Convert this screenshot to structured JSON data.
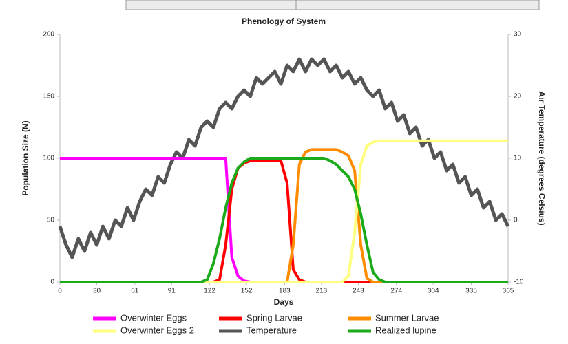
{
  "chart_data": {
    "type": "line",
    "title": "Phenology of System",
    "xlabel": "Days",
    "ylabel": "Population Size (N)",
    "y2label": "Air Temperature (degrees Celsius)",
    "x": [
      0,
      5,
      10,
      15,
      20,
      25,
      30,
      35,
      40,
      45,
      50,
      55,
      60,
      65,
      70,
      75,
      80,
      85,
      90,
      95,
      100,
      105,
      110,
      115,
      120,
      125,
      130,
      135,
      140,
      145,
      150,
      155,
      160,
      165,
      170,
      175,
      180,
      185,
      190,
      195,
      200,
      205,
      210,
      215,
      220,
      225,
      230,
      235,
      240,
      245,
      250,
      255,
      260,
      265,
      270,
      275,
      280,
      285,
      290,
      295,
      300,
      305,
      310,
      315,
      320,
      325,
      330,
      335,
      340,
      345,
      350,
      355,
      360,
      365
    ],
    "xlim": [
      0,
      365
    ],
    "xticks": [
      0,
      30,
      61,
      91,
      122,
      152,
      183,
      213,
      243,
      274,
      304,
      335,
      365
    ],
    "ylim": [
      0,
      200
    ],
    "yticks": [
      0,
      50,
      100,
      150,
      200
    ],
    "y2lim": [
      -10,
      30
    ],
    "y2ticks": [
      -10,
      0,
      10,
      20,
      30
    ],
    "series": [
      {
        "name": "Overwinter Eggs",
        "color": "#ff00ff",
        "values": [
          100,
          100,
          100,
          100,
          100,
          100,
          100,
          100,
          100,
          100,
          100,
          100,
          100,
          100,
          100,
          100,
          100,
          100,
          100,
          100,
          100,
          100,
          100,
          100,
          100,
          100,
          100,
          100,
          20,
          5,
          1,
          0,
          0,
          0,
          0,
          0,
          0,
          0,
          0,
          0,
          0,
          0,
          0,
          0,
          0,
          0,
          0,
          0,
          0,
          0,
          0,
          0,
          0,
          0,
          0,
          0,
          0,
          0,
          0,
          0,
          0,
          0,
          0,
          0,
          0,
          0,
          0,
          0,
          0,
          0,
          0,
          0,
          0,
          0
        ]
      },
      {
        "name": "Spring Larvae",
        "color": "#ff0000",
        "values": [
          0,
          0,
          0,
          0,
          0,
          0,
          0,
          0,
          0,
          0,
          0,
          0,
          0,
          0,
          0,
          0,
          0,
          0,
          0,
          0,
          0,
          0,
          0,
          0,
          0,
          0,
          2,
          30,
          75,
          92,
          96,
          98,
          98,
          98,
          98,
          98,
          98,
          80,
          10,
          2,
          0,
          0,
          0,
          0,
          0,
          0,
          0,
          0,
          0,
          0,
          0,
          0,
          0,
          0,
          0,
          0,
          0,
          0,
          0,
          0,
          0,
          0,
          0,
          0,
          0,
          0,
          0,
          0,
          0,
          0,
          0,
          0,
          0,
          0
        ]
      },
      {
        "name": "Summer Larvae",
        "color": "#ff8c00",
        "values": [
          0,
          0,
          0,
          0,
          0,
          0,
          0,
          0,
          0,
          0,
          0,
          0,
          0,
          0,
          0,
          0,
          0,
          0,
          0,
          0,
          0,
          0,
          0,
          0,
          0,
          0,
          0,
          0,
          0,
          0,
          0,
          0,
          0,
          0,
          0,
          0,
          0,
          0,
          30,
          95,
          105,
          107,
          107,
          107,
          107,
          107,
          105,
          102,
          90,
          30,
          3,
          0,
          0,
          0,
          0,
          0,
          0,
          0,
          0,
          0,
          0,
          0,
          0,
          0,
          0,
          0,
          0,
          0,
          0,
          0,
          0,
          0,
          0,
          0
        ]
      },
      {
        "name": "Overwinter Eggs 2",
        "color": "#ffff80",
        "values": [
          0,
          0,
          0,
          0,
          0,
          0,
          0,
          0,
          0,
          0,
          0,
          0,
          0,
          0,
          0,
          0,
          0,
          0,
          0,
          0,
          0,
          0,
          0,
          0,
          0,
          0,
          0,
          0,
          0,
          0,
          0,
          0,
          0,
          0,
          0,
          0,
          0,
          0,
          0,
          0,
          0,
          0,
          0,
          0,
          0,
          0,
          0,
          5,
          40,
          95,
          110,
          113,
          114,
          114,
          114,
          114,
          114,
          114,
          114,
          114,
          114,
          114,
          114,
          114,
          114,
          114,
          114,
          114,
          114,
          114,
          114,
          114,
          114,
          114
        ]
      },
      {
        "name": "Temperature",
        "color": "#555555",
        "axis": "y2",
        "values": [
          -1,
          -4,
          -6,
          -3,
          -5,
          -2,
          -4,
          -1,
          -3,
          0,
          -1,
          2,
          0,
          3,
          5,
          4,
          7,
          6,
          9,
          11,
          10,
          13,
          12,
          15,
          16,
          15,
          18,
          19,
          18,
          20,
          21,
          20,
          23,
          22,
          23,
          24,
          22,
          25,
          24,
          26,
          24,
          26,
          25,
          26,
          24,
          25,
          23,
          24,
          22,
          23,
          21,
          20,
          21,
          18,
          19,
          16,
          17,
          14,
          15,
          12,
          13,
          10,
          11,
          8,
          9,
          6,
          7,
          4,
          5,
          2,
          3,
          0,
          1,
          -1
        ]
      },
      {
        "name": "Realized lupine",
        "color": "#1aaa1a",
        "values": [
          0,
          0,
          0,
          0,
          0,
          0,
          0,
          0,
          0,
          0,
          0,
          0,
          0,
          0,
          0,
          0,
          0,
          0,
          0,
          0,
          0,
          0,
          0,
          0,
          2,
          15,
          35,
          60,
          80,
          92,
          97,
          100,
          100,
          100,
          100,
          100,
          100,
          100,
          100,
          100,
          100,
          100,
          100,
          100,
          98,
          95,
          90,
          85,
          75,
          55,
          30,
          8,
          2,
          0,
          0,
          0,
          0,
          0,
          0,
          0,
          0,
          0,
          0,
          0,
          0,
          0,
          0,
          0,
          0,
          0,
          0,
          0,
          0,
          0
        ]
      }
    ]
  }
}
